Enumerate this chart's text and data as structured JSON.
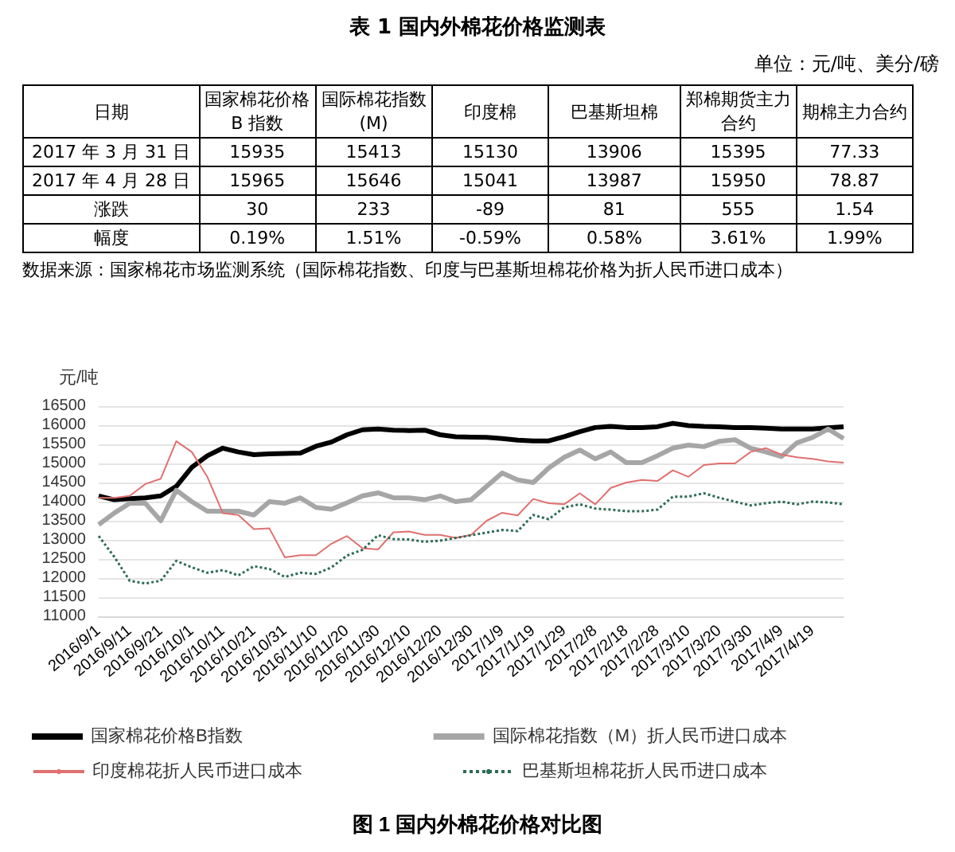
{
  "chart_data": [
    {
      "type": "other",
      "title": "表 1 国内外棉花价格监测表",
      "annotations": [
        "单位：元/吨、美分/磅",
        "日期",
        "国家棉花价格 B 指数",
        "国际棉花指数(M)",
        "印度棉",
        "巴基斯坦棉",
        "郑棉期货主力合约",
        "期棉主力合约",
        "2017 年 3 月 31 日",
        "15935",
        "15413",
        "15130",
        "13906",
        "15395",
        "77.33",
        "2017 年 4 月 28 日",
        "15965",
        "15646",
        "15041",
        "13987",
        "15950",
        "78.87",
        "涨跌",
        "30",
        "233",
        "-89",
        "81",
        "555",
        "1.54",
        "幅度",
        "0.19%",
        "1.51%",
        "-0.59%",
        "0.58%",
        "3.61%",
        "1.99%",
        "数据来源：国家棉花市场监测系统（国际棉花指数、印度与巴基斯坦棉花价格为折人民币进口成本）"
      ]
    },
    {
      "type": "line",
      "title": "图 1 国内外棉花价格对比图",
      "ylabel": "元/吨",
      "categories": [
        "2016/9/1",
        null,
        "2016/9/11",
        null,
        "2016/9/21",
        null,
        "2016/10/1",
        null,
        "2016/10/11",
        null,
        "2016/10/21",
        null,
        "2016/10/31",
        null,
        "2016/11/10",
        null,
        "2016/11/20",
        null,
        "2016/11/30",
        null,
        "2016/12/10",
        null,
        "2016/12/20",
        null,
        "2016/12/30",
        null,
        "2017/1/9",
        null,
        "2017/1/19",
        null,
        "2017/1/29",
        null,
        "2017/2/8",
        null,
        "2017/2/18",
        null,
        "2017/2/28",
        null,
        "2017/3/10",
        null,
        "2017/3/20",
        null,
        "2017/3/30",
        null,
        "2017/4/9",
        null,
        "2017/4/19",
        null,
        null
      ],
      "series": [
        {
          "name": "国家棉花价格B指数",
          "color": "#000000",
          "line_style": "solid",
          "values": [
            14150,
            14050,
            14080,
            14100,
            14150,
            14400,
            14900,
            15200,
            15400,
            15300,
            15230,
            15250,
            15260,
            15270,
            15450,
            15560,
            15750,
            15880,
            15900,
            15870,
            15860,
            15870,
            15750,
            15700,
            15690,
            15680,
            15650,
            15610,
            15590,
            15590,
            15700,
            15830,
            15940,
            15970,
            15940,
            15940,
            15960,
            16050,
            15990,
            15970,
            15960,
            15940,
            15940,
            15920,
            15900,
            15900,
            15900,
            15930,
            15960
          ]
        },
        {
          "name": "国际棉花指数（M）折人民币进口成本",
          "color": "#a6a6a6",
          "line_style": "solid",
          "values": [
            13400,
            13700,
            13960,
            13960,
            13500,
            14300,
            14000,
            13750,
            13750,
            13750,
            13650,
            14000,
            13960,
            14100,
            13850,
            13800,
            13970,
            14150,
            14230,
            14100,
            14100,
            14050,
            14150,
            14000,
            14050,
            14400,
            14750,
            14570,
            14500,
            14880,
            15160,
            15350,
            15120,
            15300,
            15020,
            15020,
            15200,
            15400,
            15480,
            15440,
            15580,
            15620,
            15400,
            15300,
            15180,
            15540,
            15680,
            15900,
            15650
          ]
        },
        {
          "name": "印度棉花折人民币进口成本",
          "color": "#e07070",
          "line_style": "solid",
          "values": [
            14100,
            14100,
            14150,
            14460,
            14600,
            15580,
            15300,
            14650,
            13700,
            13650,
            13280,
            13300,
            12540,
            12600,
            12600,
            12900,
            13100,
            12780,
            12750,
            13200,
            13220,
            13130,
            13130,
            13050,
            13130,
            13500,
            13710,
            13640,
            14070,
            13960,
            13930,
            14220,
            13930,
            14360,
            14500,
            14570,
            14540,
            14820,
            14650,
            14960,
            15000,
            15000,
            15300,
            15400,
            15230,
            15160,
            15120,
            15050,
            15020
          ]
        },
        {
          "name": "巴基斯坦棉花折人民币进口成本",
          "color": "#2e6b55",
          "line_style": "dotted",
          "values": [
            13100,
            12560,
            11930,
            11860,
            11930,
            12450,
            12280,
            12140,
            12210,
            12070,
            12310,
            12240,
            12030,
            12140,
            12110,
            12280,
            12590,
            12740,
            13120,
            13020,
            13010,
            12950,
            12980,
            13050,
            13120,
            13190,
            13260,
            13230,
            13650,
            13540,
            13850,
            13930,
            13820,
            13790,
            13750,
            13750,
            13790,
            14130,
            14130,
            14220,
            14100,
            14000,
            13900,
            13960,
            14000,
            13930,
            14000,
            13980,
            13930
          ]
        }
      ],
      "ylim": [
        11000,
        16500
      ],
      "yticks": [
        11000,
        11500,
        12000,
        12500,
        13000,
        13500,
        14000,
        14500,
        15000,
        15500,
        16000,
        16500
      ],
      "grid": "y",
      "legend": "bottom",
      "marker": "none"
    }
  ]
}
